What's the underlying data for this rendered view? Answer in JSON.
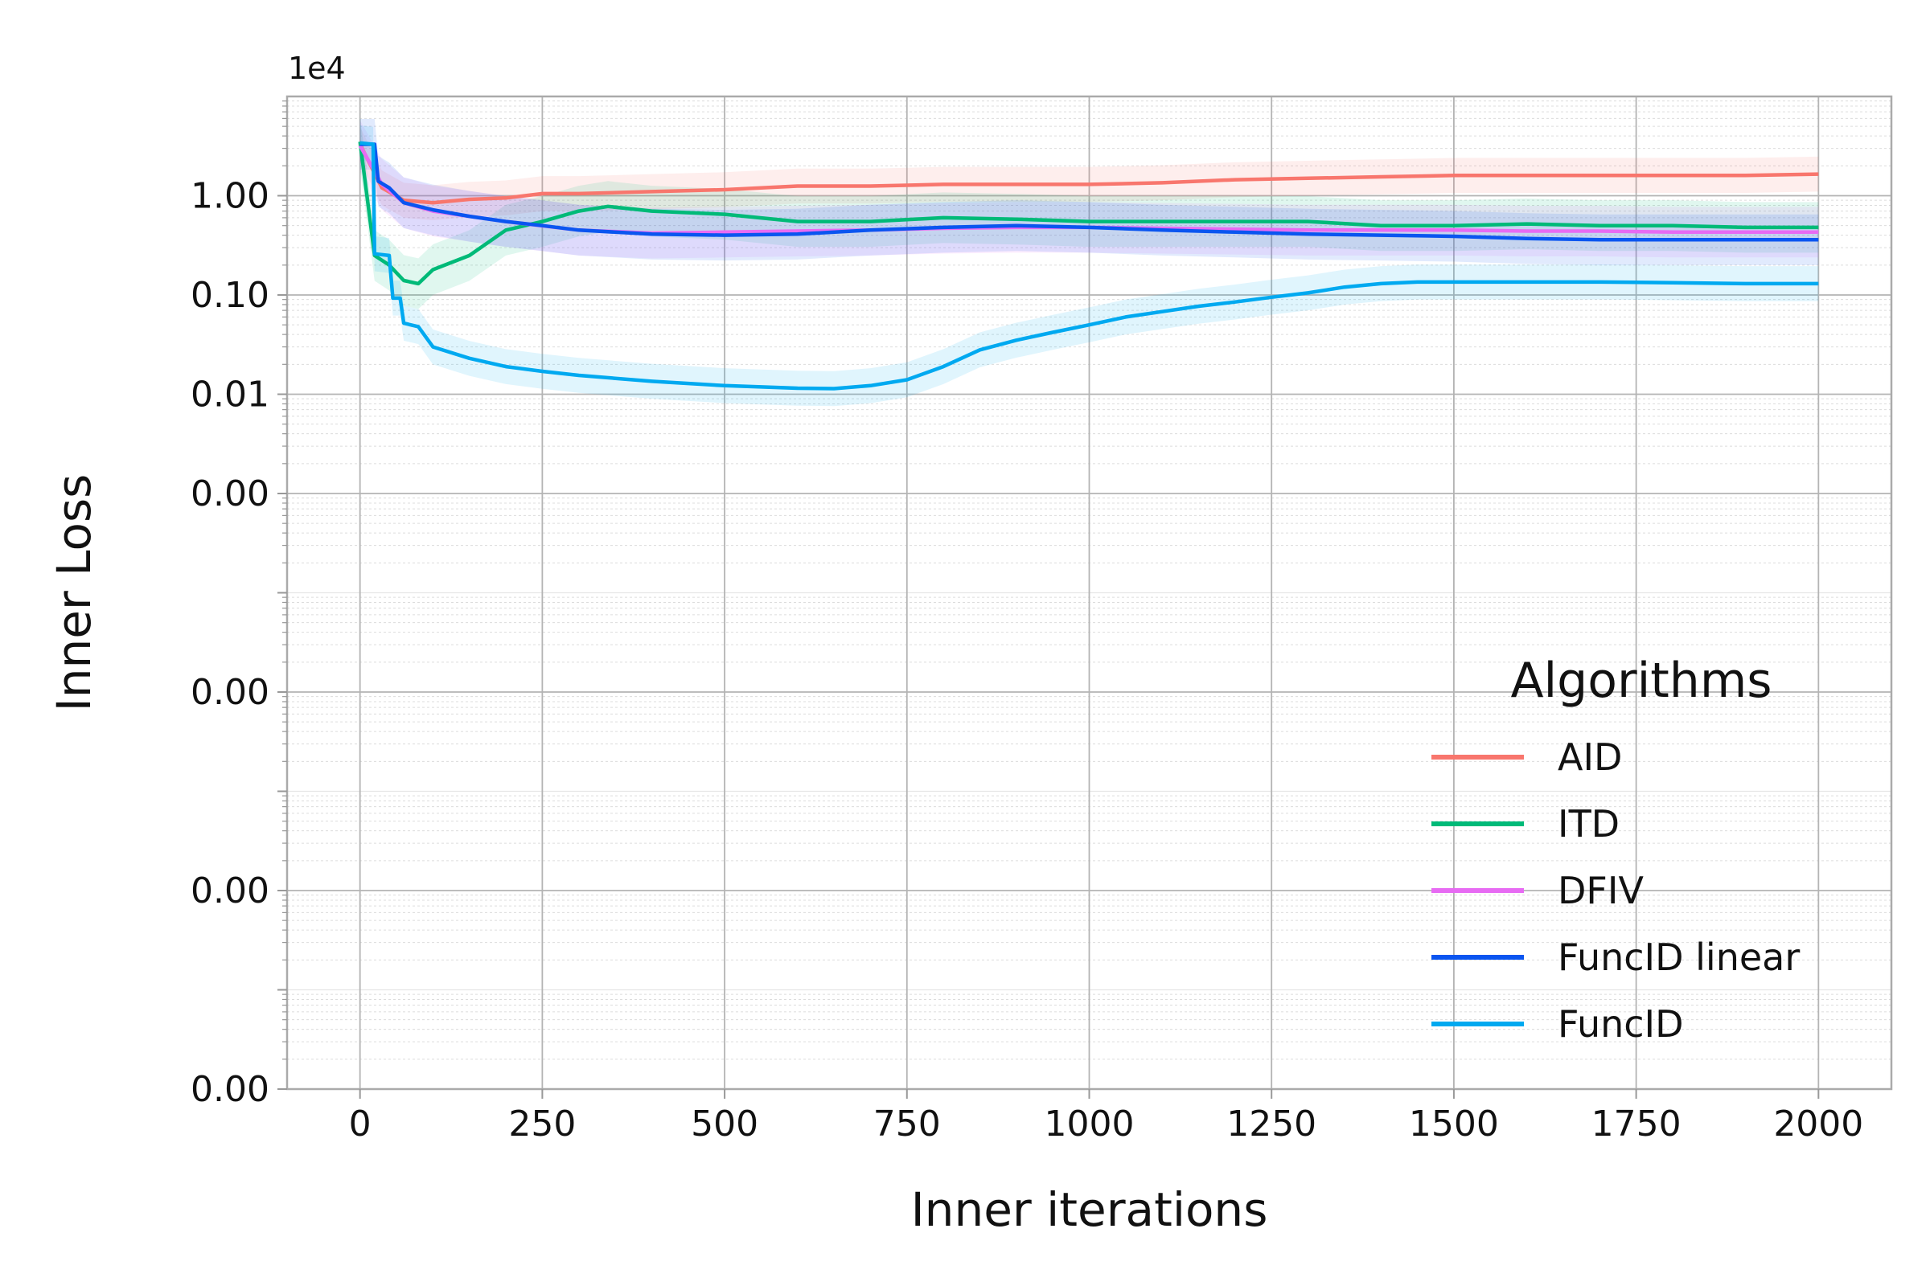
{
  "chart_data": {
    "type": "line",
    "xlabel": "Inner iterations",
    "ylabel": "Inner Loss",
    "y_scale": "log",
    "y_offset_label": "1e4",
    "xlim": [
      -100,
      2100
    ],
    "ylim": [
      1e-09,
      10
    ],
    "x_ticks": [
      0,
      250,
      500,
      750,
      1000,
      1250,
      1500,
      1750,
      2000
    ],
    "x_tick_labels": [
      "0",
      "250",
      "500",
      "750",
      "1000",
      "1250",
      "1500",
      "1750",
      "2000"
    ],
    "y_ticks": [
      1,
      0.1,
      0.01,
      0.001,
      1e-05,
      1e-07,
      1e-09
    ],
    "y_tick_labels": [
      "1.00",
      "0.10",
      "0.01",
      "0.00",
      "0.00",
      "0.00",
      "0.00"
    ],
    "grid": true,
    "legend": {
      "title": "Algorithms",
      "position": "center-right"
    },
    "series": [
      {
        "name": "AID",
        "color": "#F8766D",
        "points": [
          [
            0,
            3.3
          ],
          [
            30,
            1.2
          ],
          [
            60,
            0.9
          ],
          [
            100,
            0.85
          ],
          [
            150,
            0.92
          ],
          [
            200,
            0.95
          ],
          [
            250,
            1.05
          ],
          [
            300,
            1.05
          ],
          [
            400,
            1.1
          ],
          [
            500,
            1.15
          ],
          [
            550,
            1.2
          ],
          [
            600,
            1.25
          ],
          [
            700,
            1.25
          ],
          [
            800,
            1.3
          ],
          [
            900,
            1.3
          ],
          [
            1000,
            1.3
          ],
          [
            1100,
            1.35
          ],
          [
            1200,
            1.45
          ],
          [
            1300,
            1.5
          ],
          [
            1400,
            1.55
          ],
          [
            1500,
            1.6
          ],
          [
            1600,
            1.6
          ],
          [
            1700,
            1.6
          ],
          [
            1800,
            1.6
          ],
          [
            1900,
            1.6
          ],
          [
            2000,
            1.65
          ]
        ]
      },
      {
        "name": "ITD",
        "color": "#00BA78",
        "points": [
          [
            0,
            3.5
          ],
          [
            20,
            0.25
          ],
          [
            40,
            0.2
          ],
          [
            60,
            0.14
          ],
          [
            80,
            0.13
          ],
          [
            100,
            0.18
          ],
          [
            150,
            0.25
          ],
          [
            200,
            0.45
          ],
          [
            250,
            0.55
          ],
          [
            300,
            0.7
          ],
          [
            340,
            0.78
          ],
          [
            400,
            0.7
          ],
          [
            500,
            0.65
          ],
          [
            600,
            0.55
          ],
          [
            700,
            0.55
          ],
          [
            800,
            0.6
          ],
          [
            900,
            0.58
          ],
          [
            1000,
            0.55
          ],
          [
            1100,
            0.55
          ],
          [
            1200,
            0.55
          ],
          [
            1300,
            0.55
          ],
          [
            1400,
            0.5
          ],
          [
            1500,
            0.5
          ],
          [
            1600,
            0.52
          ],
          [
            1700,
            0.5
          ],
          [
            1800,
            0.5
          ],
          [
            1900,
            0.48
          ],
          [
            2000,
            0.48
          ]
        ]
      },
      {
        "name": "DFIV",
        "color": "#E76BF3",
        "points": [
          [
            0,
            3.2
          ],
          [
            30,
            1.3
          ],
          [
            60,
            0.85
          ],
          [
            100,
            0.7
          ],
          [
            200,
            0.55
          ],
          [
            300,
            0.45
          ],
          [
            400,
            0.42
          ],
          [
            500,
            0.43
          ],
          [
            600,
            0.44
          ],
          [
            700,
            0.45
          ],
          [
            800,
            0.47
          ],
          [
            900,
            0.48
          ],
          [
            1000,
            0.48
          ],
          [
            1100,
            0.47
          ],
          [
            1200,
            0.46
          ],
          [
            1300,
            0.45
          ],
          [
            1400,
            0.45
          ],
          [
            1500,
            0.45
          ],
          [
            1600,
            0.44
          ],
          [
            1700,
            0.44
          ],
          [
            1800,
            0.43
          ],
          [
            1900,
            0.43
          ],
          [
            2000,
            0.43
          ]
        ]
      },
      {
        "name": "FuncID linear",
        "color": "#0A55F0",
        "points": [
          [
            0,
            3.3
          ],
          [
            20,
            3.3
          ],
          [
            25,
            1.4
          ],
          [
            40,
            1.2
          ],
          [
            60,
            0.85
          ],
          [
            100,
            0.72
          ],
          [
            150,
            0.62
          ],
          [
            200,
            0.55
          ],
          [
            250,
            0.5
          ],
          [
            300,
            0.45
          ],
          [
            400,
            0.41
          ],
          [
            500,
            0.4
          ],
          [
            600,
            0.41
          ],
          [
            700,
            0.45
          ],
          [
            800,
            0.48
          ],
          [
            900,
            0.5
          ],
          [
            1000,
            0.48
          ],
          [
            1100,
            0.45
          ],
          [
            1200,
            0.43
          ],
          [
            1300,
            0.41
          ],
          [
            1400,
            0.4
          ],
          [
            1500,
            0.39
          ],
          [
            1600,
            0.37
          ],
          [
            1700,
            0.36
          ],
          [
            1800,
            0.36
          ],
          [
            1900,
            0.36
          ],
          [
            2000,
            0.36
          ]
        ]
      },
      {
        "name": "FuncID",
        "color": "#00A9F0",
        "points": [
          [
            0,
            3.4
          ],
          [
            18,
            3.3
          ],
          [
            20,
            0.26
          ],
          [
            40,
            0.25
          ],
          [
            45,
            0.093
          ],
          [
            55,
            0.093
          ],
          [
            60,
            0.052
          ],
          [
            80,
            0.048
          ],
          [
            100,
            0.03
          ],
          [
            150,
            0.023
          ],
          [
            200,
            0.019
          ],
          [
            250,
            0.017
          ],
          [
            300,
            0.0155
          ],
          [
            400,
            0.0135
          ],
          [
            500,
            0.0122
          ],
          [
            600,
            0.0115
          ],
          [
            650,
            0.0114
          ],
          [
            700,
            0.0122
          ],
          [
            750,
            0.014
          ],
          [
            800,
            0.019
          ],
          [
            850,
            0.028
          ],
          [
            900,
            0.035
          ],
          [
            950,
            0.042
          ],
          [
            1000,
            0.05
          ],
          [
            1050,
            0.06
          ],
          [
            1100,
            0.068
          ],
          [
            1150,
            0.077
          ],
          [
            1200,
            0.085
          ],
          [
            1250,
            0.095
          ],
          [
            1300,
            0.105
          ],
          [
            1350,
            0.12
          ],
          [
            1400,
            0.13
          ],
          [
            1450,
            0.135
          ],
          [
            1500,
            0.135
          ],
          [
            1600,
            0.135
          ],
          [
            1700,
            0.135
          ],
          [
            1800,
            0.133
          ],
          [
            1900,
            0.13
          ],
          [
            2000,
            0.13
          ]
        ]
      }
    ]
  }
}
